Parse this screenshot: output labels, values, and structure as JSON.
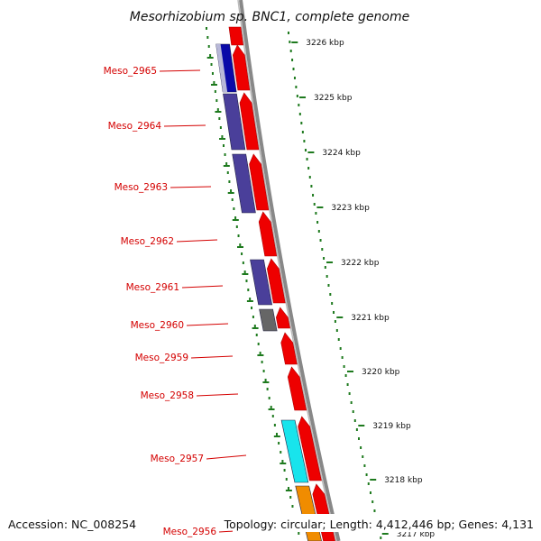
{
  "title": "Mesorhizobium sp. BNC1, complete genome",
  "accession_label": "Accession: NC_008254",
  "topology_label": "Topology: circular; Length: 4,412,446 bp; Genes: 4,131",
  "colors": {
    "forward_cds": "#ee0000",
    "cog_purple": "#4a3f9a",
    "cog_blue": "#0a0aa8",
    "cog_gray": "#666666",
    "cog_cyan": "#18e4ec",
    "cog_orange": "#f08c00",
    "label_red": "#d40000",
    "tick_green": "#1e7a1e",
    "backbone": "#888888"
  },
  "ticks": [
    {
      "kbp": 3226,
      "label": "3226 kbp"
    },
    {
      "kbp": 3225,
      "label": "3225 kbp"
    },
    {
      "kbp": 3224,
      "label": "3224 kbp"
    },
    {
      "kbp": 3223,
      "label": "3223 kbp"
    },
    {
      "kbp": 3222,
      "label": "3222 kbp"
    },
    {
      "kbp": 3221,
      "label": "3221 kbp"
    },
    {
      "kbp": 3220,
      "label": "3220 kbp"
    },
    {
      "kbp": 3219,
      "label": "3219 kbp"
    },
    {
      "kbp": 3218,
      "label": "3218 kbp"
    },
    {
      "kbp": 3217,
      "label": "3217 kbp"
    }
  ],
  "genes": [
    {
      "id": "Meso_2965",
      "label": "Meso_2965",
      "cog": "cog_blue"
    },
    {
      "id": "Meso_2964",
      "label": "Meso_2964",
      "cog": "cog_purple"
    },
    {
      "id": "Meso_2963",
      "label": "Meso_2963",
      "cog": "cog_purple"
    },
    {
      "id": "Meso_2962",
      "label": "Meso_2962",
      "cog": ""
    },
    {
      "id": "Meso_2961",
      "label": "Meso_2961",
      "cog": "cog_purple"
    },
    {
      "id": "Meso_2960",
      "label": "Meso_2960",
      "cog": "cog_gray"
    },
    {
      "id": "Meso_2959",
      "label": "Meso_2959",
      "cog": ""
    },
    {
      "id": "Meso_2958",
      "label": "Meso_2958",
      "cog": ""
    },
    {
      "id": "Meso_2957",
      "label": "Meso_2957",
      "cog": "cog_cyan"
    },
    {
      "id": "Meso_2956",
      "label": "Meso_2956",
      "cog": "cog_orange"
    }
  ]
}
